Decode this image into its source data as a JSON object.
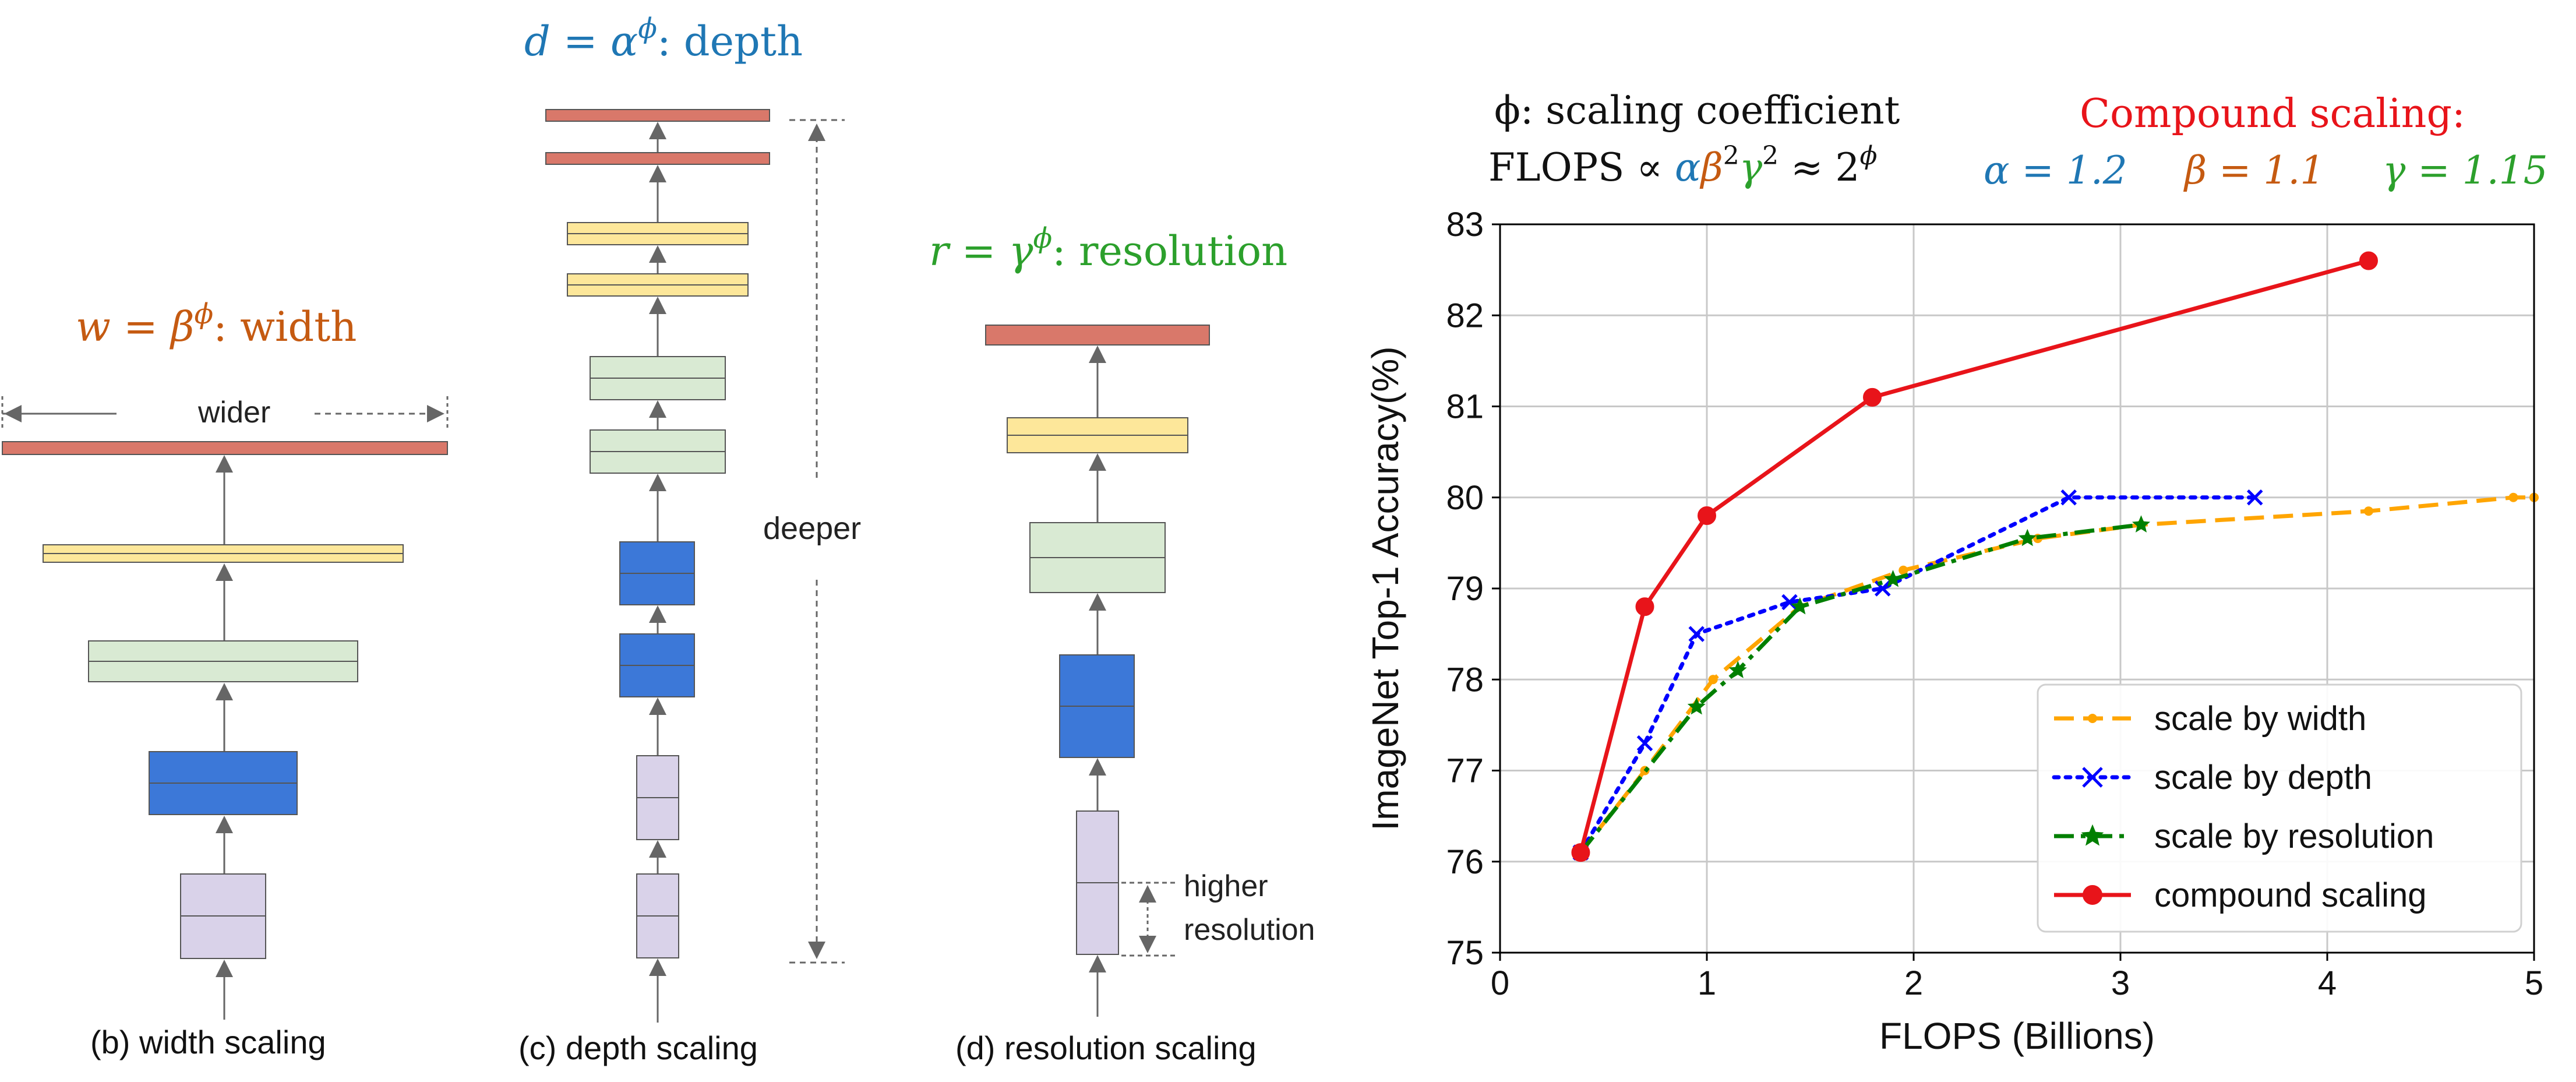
{
  "colors": {
    "head": "#d9786a",
    "yellow": "#fde79a",
    "green": "#d9ead3",
    "blue": "#3c78d8",
    "purple": "#d9d2e9",
    "border": "#555555",
    "arrow": "#666666",
    "width_text": "#c55a11",
    "depth_text": "#1f77b4",
    "res_text": "#2ca02c",
    "compound_text": "#e8141a",
    "grid": "#c8c8c8"
  },
  "diagrams": {
    "width": {
      "formula_var": "w = β",
      "formula_sup": "ϕ",
      "formula_label": ": width",
      "wider_label": "wider",
      "caption": "(b) width scaling"
    },
    "depth": {
      "formula_var": "d = α",
      "formula_sup": "ϕ",
      "formula_label": ": depth",
      "deeper_label": "deeper",
      "caption": "(c) depth scaling"
    },
    "resolution": {
      "formula_var": "r = γ",
      "formula_sup": "ϕ",
      "formula_label": ": resolution",
      "higher_label_1": "higher",
      "higher_label_2": "resolution",
      "caption": "(d) resolution scaling"
    }
  },
  "annotations": {
    "phi_line": "ϕ:  scaling coefficient",
    "flops_prefix": "FLOPS ∝ ",
    "flops_alpha": "α",
    "flops_beta": "β",
    "flops_beta_sup": "2",
    "flops_gamma": "γ",
    "flops_gamma_sup": "2",
    "flops_approx": " ≈ 2",
    "flops_approx_sup": "ϕ",
    "compound_title": "Compound scaling:",
    "alpha_value": "α = 1.2",
    "beta_value": "β = 1.1",
    "gamma_value": "γ = 1.15"
  },
  "chart_data": {
    "type": "line",
    "title": "",
    "xlabel": "FLOPS (Billions)",
    "ylabel": "ImageNet Top-1 Accuracy(%)",
    "xlim": [
      0,
      5
    ],
    "ylim": [
      75,
      83
    ],
    "xticks": [
      "0",
      "1",
      "2",
      "3",
      "4",
      "5"
    ],
    "yticks": [
      "75",
      "76",
      "77",
      "78",
      "79",
      "80",
      "81",
      "82",
      "83"
    ],
    "grid": true,
    "legend_position": "lower-right",
    "series": [
      {
        "name": "scale by width",
        "color": "#ffa500",
        "style": "dashed",
        "marker": "dot",
        "x": [
          0.39,
          0.7,
          1.03,
          1.45,
          1.95,
          2.6,
          3.1,
          4.2,
          4.9,
          5.0
        ],
        "y": [
          76.1,
          77.0,
          78.0,
          78.8,
          79.2,
          79.55,
          79.7,
          79.85,
          80.0,
          80.0
        ]
      },
      {
        "name": "scale by depth",
        "color": "#0000ff",
        "style": "dotted",
        "marker": "x",
        "x": [
          0.39,
          0.7,
          0.95,
          1.4,
          1.85,
          2.75,
          3.65
        ],
        "y": [
          76.1,
          77.3,
          78.5,
          78.85,
          79.0,
          80.0,
          80.0
        ]
      },
      {
        "name": "scale by resolution",
        "color": "#007f00",
        "style": "dashdot",
        "marker": "star",
        "x": [
          0.39,
          0.95,
          1.15,
          1.45,
          1.9,
          2.55,
          3.1
        ],
        "y": [
          76.1,
          77.7,
          78.1,
          78.8,
          79.1,
          79.55,
          79.7
        ]
      },
      {
        "name": "compound scaling",
        "color": "#e8141a",
        "style": "solid",
        "marker": "circle",
        "x": [
          0.39,
          0.7,
          1.0,
          1.8,
          4.2
        ],
        "y": [
          76.1,
          78.8,
          79.8,
          81.1,
          82.6
        ]
      }
    ]
  }
}
